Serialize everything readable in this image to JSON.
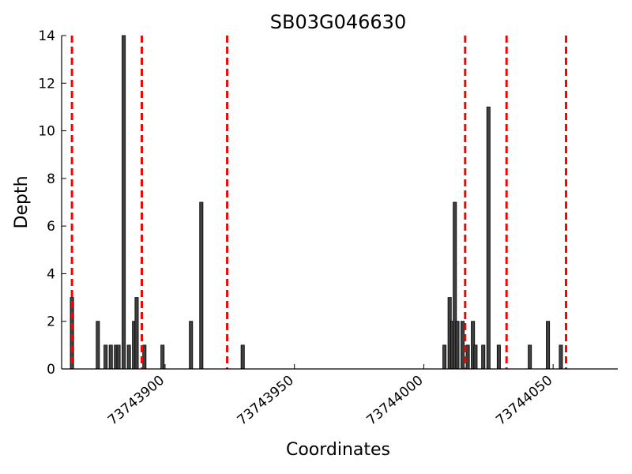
{
  "chart_data": {
    "type": "bar",
    "title": "SB03G046630",
    "xlabel": "Coordinates",
    "ylabel": "Depth",
    "xlim": [
      73743860,
      73744075
    ],
    "ylim": [
      0,
      14
    ],
    "yticks": [
      0,
      2,
      4,
      6,
      8,
      10,
      12,
      14
    ],
    "xticks": [
      73743900,
      73743950,
      73744000,
      73744050
    ],
    "x": [
      73743864,
      73743874,
      73743877,
      73743879,
      73743881,
      73743882,
      73743884,
      73743886,
      73743888,
      73743889,
      73743892,
      73743899,
      73743910,
      73743914,
      73743930,
      73744008,
      73744010,
      73744011,
      73744012,
      73744013,
      73744015,
      73744017,
      73744019,
      73744020,
      73744023,
      73744025,
      73744029,
      73744041,
      73744048,
      73744053
    ],
    "values": [
      3,
      2,
      1,
      1,
      1,
      1,
      14,
      1,
      2,
      3,
      1,
      1,
      2,
      7,
      1,
      1,
      3,
      2,
      7,
      2,
      2,
      1,
      2,
      1,
      1,
      11,
      1,
      1,
      2,
      1
    ],
    "markers": [
      73743864,
      73743891,
      73743924,
      73744016,
      73744032,
      73744055
    ],
    "bar_color": "#404040",
    "marker_color": "#ff0000",
    "grid": false
  }
}
